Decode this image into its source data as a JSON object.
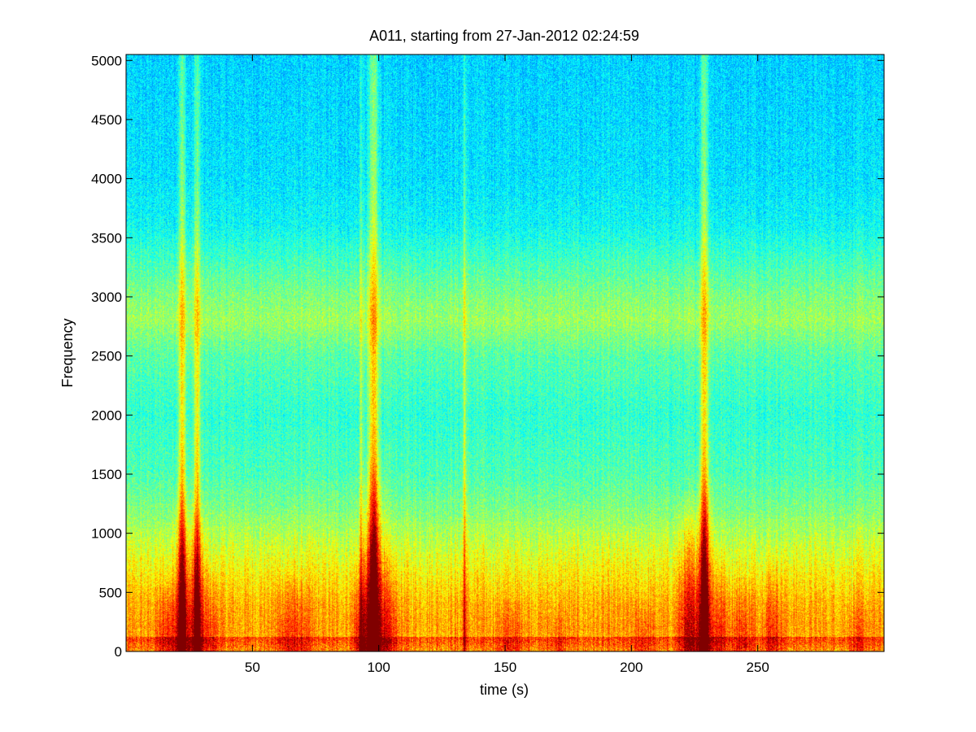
{
  "chart_data": {
    "type": "heatmap",
    "title": "A011, starting from 27-Jan-2012 02:24:59",
    "xlabel": "time (s)",
    "ylabel": "Frequency",
    "xlim": [
      0,
      300
    ],
    "ylim": [
      0,
      5050
    ],
    "xticks": [
      {
        "value": 50,
        "label": "50"
      },
      {
        "value": 100,
        "label": "100"
      },
      {
        "value": 150,
        "label": "150"
      },
      {
        "value": 200,
        "label": "200"
      },
      {
        "value": 250,
        "label": "250"
      }
    ],
    "yticks": [
      {
        "value": 0,
        "label": "0"
      },
      {
        "value": 500,
        "label": "500"
      },
      {
        "value": 1000,
        "label": "1000"
      },
      {
        "value": 1500,
        "label": "1500"
      },
      {
        "value": 2000,
        "label": "2000"
      },
      {
        "value": 2500,
        "label": "2500"
      },
      {
        "value": 3000,
        "label": "3000"
      },
      {
        "value": 3500,
        "label": "3500"
      },
      {
        "value": 4000,
        "label": "4000"
      },
      {
        "value": 4500,
        "label": "4500"
      },
      {
        "value": 5000,
        "label": "5000"
      }
    ],
    "grid": false,
    "colormap": "jet",
    "background_profile": [
      {
        "frequency": 5050,
        "level": 0.33
      },
      {
        "frequency": 4500,
        "level": 0.34
      },
      {
        "frequency": 4000,
        "level": 0.35
      },
      {
        "frequency": 3600,
        "level": 0.38
      },
      {
        "frequency": 3300,
        "level": 0.44
      },
      {
        "frequency": 3000,
        "level": 0.5
      },
      {
        "frequency": 2800,
        "level": 0.53
      },
      {
        "frequency": 2500,
        "level": 0.46
      },
      {
        "frequency": 2000,
        "level": 0.42
      },
      {
        "frequency": 1500,
        "level": 0.45
      },
      {
        "frequency": 1200,
        "level": 0.5
      },
      {
        "frequency": 1000,
        "level": 0.55
      },
      {
        "frequency": 800,
        "level": 0.6
      },
      {
        "frequency": 600,
        "level": 0.65
      },
      {
        "frequency": 400,
        "level": 0.7
      },
      {
        "frequency": 200,
        "level": 0.72
      },
      {
        "frequency": 100,
        "level": 0.7
      },
      {
        "frequency": 0,
        "level": 0.62
      }
    ],
    "broadband_events": [
      {
        "time": 98,
        "width": 2.0,
        "intensity": 1.0,
        "max_frequency": 5050
      },
      {
        "time": 229,
        "width": 1.6,
        "intensity": 0.95,
        "max_frequency": 5050
      },
      {
        "time": 22,
        "width": 1.4,
        "intensity": 0.85,
        "max_frequency": 5050
      },
      {
        "time": 28,
        "width": 1.2,
        "intensity": 0.8,
        "max_frequency": 5050
      },
      {
        "time": 134,
        "width": 0.6,
        "intensity": 0.6,
        "max_frequency": 5050
      },
      {
        "time": 93,
        "width": 0.6,
        "intensity": 0.5,
        "max_frequency": 5050
      }
    ],
    "low_frequency_bursts": [
      {
        "time": 16,
        "width": 4,
        "intensity": 0.5,
        "max_frequency": 700
      },
      {
        "time": 22,
        "width": 3,
        "intensity": 0.9,
        "max_frequency": 1400
      },
      {
        "time": 28,
        "width": 3,
        "intensity": 0.85,
        "max_frequency": 1300
      },
      {
        "time": 34,
        "width": 3,
        "intensity": 0.4,
        "max_frequency": 800
      },
      {
        "time": 64,
        "width": 4,
        "intensity": 0.45,
        "max_frequency": 800
      },
      {
        "time": 70,
        "width": 3,
        "intensity": 0.35,
        "max_frequency": 700
      },
      {
        "time": 93,
        "width": 3,
        "intensity": 0.6,
        "max_frequency": 900
      },
      {
        "time": 98,
        "width": 4,
        "intensity": 1.0,
        "max_frequency": 1700
      },
      {
        "time": 104,
        "width": 4,
        "intensity": 0.45,
        "max_frequency": 900
      },
      {
        "time": 152,
        "width": 6,
        "intensity": 0.35,
        "max_frequency": 500
      },
      {
        "time": 171,
        "width": 3,
        "intensity": 0.3,
        "max_frequency": 400
      },
      {
        "time": 205,
        "width": 4,
        "intensity": 0.35,
        "max_frequency": 500
      },
      {
        "time": 223,
        "width": 4,
        "intensity": 0.8,
        "max_frequency": 1400
      },
      {
        "time": 229,
        "width": 3,
        "intensity": 0.9,
        "max_frequency": 1600
      },
      {
        "time": 235,
        "width": 3,
        "intensity": 0.5,
        "max_frequency": 900
      },
      {
        "time": 244,
        "width": 5,
        "intensity": 0.45,
        "max_frequency": 700
      },
      {
        "time": 256,
        "width": 4,
        "intensity": 0.5,
        "max_frequency": 900
      },
      {
        "time": 290,
        "width": 4,
        "intensity": 0.3,
        "max_frequency": 500
      }
    ]
  }
}
